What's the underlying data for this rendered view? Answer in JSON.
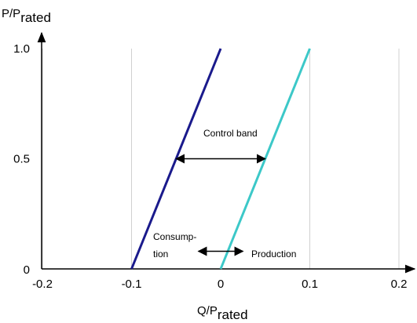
{
  "chart_data": {
    "type": "line",
    "ylabel_main": "P/P",
    "ylabel_sub": "rated",
    "xlabel_main": "Q/P",
    "xlabel_sub": "rated",
    "xlim": [
      -0.2,
      0.2
    ],
    "ylim": [
      0,
      1.0
    ],
    "x_ticks": [
      -0.2,
      -0.1,
      0,
      0.1,
      0.2
    ],
    "x_tick_labels": [
      "-0.2",
      "-0.1",
      "0",
      "0.1",
      "0.2"
    ],
    "y_ticks": [
      0,
      0.5,
      1.0
    ],
    "y_tick_labels": [
      "0",
      "0.5",
      "1.0"
    ],
    "grid": "vertical",
    "series": [
      {
        "color": "#1a1a8c",
        "points": [
          [
            -0.1,
            0
          ],
          [
            0,
            1.0
          ]
        ]
      },
      {
        "color": "#3cc8c8",
        "points": [
          [
            0,
            0
          ],
          [
            0.1,
            1.0
          ]
        ]
      }
    ],
    "annotations": {
      "control_band": {
        "label": "Control band",
        "x_from": -0.05,
        "x_to": 0.05,
        "y": 0.5
      },
      "consumption": {
        "label_line1": "Consump-",
        "label_line2": "tion"
      },
      "production": {
        "label": "Production"
      },
      "origin_arrow": {
        "x_from": -0.025,
        "x_to": 0.025,
        "y": 0.08
      }
    }
  }
}
